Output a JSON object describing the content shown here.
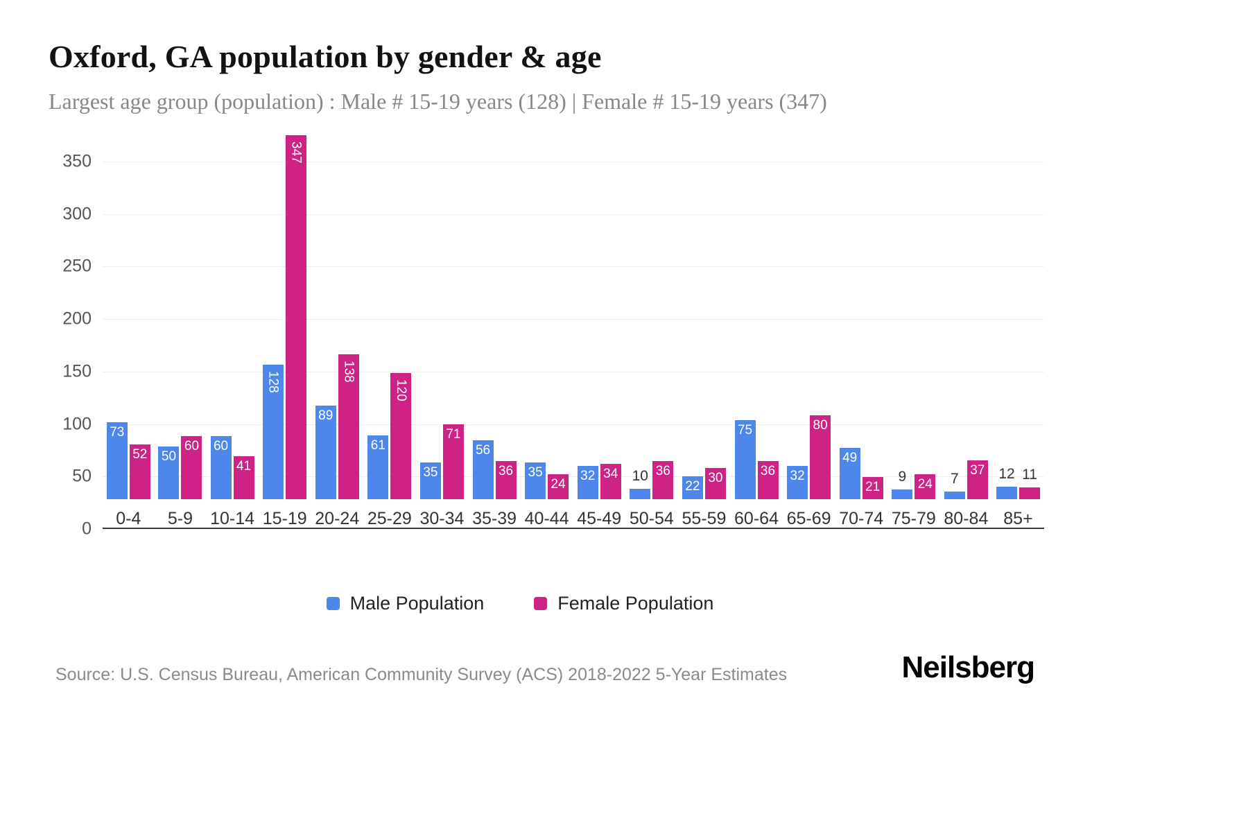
{
  "header": {
    "title": "Oxford, GA population by gender & age",
    "subtitle": "Largest age group (population) : Male # 15-19 years (128) | Female # 15-19 years (347)"
  },
  "chart_data": {
    "type": "bar",
    "title": "Oxford, GA population by gender & age",
    "categories": [
      "0-4",
      "5-9",
      "10-14",
      "15-19",
      "20-24",
      "25-29",
      "30-34",
      "35-39",
      "40-44",
      "45-49",
      "50-54",
      "55-59",
      "60-64",
      "65-69",
      "70-74",
      "75-79",
      "80-84",
      "85+"
    ],
    "series": [
      {
        "name": "Male Population",
        "color": "#4e87ec",
        "values": [
          73,
          50,
          60,
          128,
          89,
          61,
          35,
          56,
          35,
          32,
          10,
          22,
          75,
          32,
          49,
          9,
          7,
          12
        ]
      },
      {
        "name": "Female Population",
        "color": "#ce2286",
        "values": [
          52,
          60,
          41,
          347,
          138,
          120,
          71,
          36,
          24,
          34,
          36,
          30,
          36,
          80,
          21,
          24,
          37,
          11
        ]
      }
    ],
    "xlabel": "",
    "ylabel": "",
    "ylim": [
      0,
      350
    ],
    "yticks": [
      0,
      50,
      100,
      150,
      200,
      250,
      300,
      350
    ],
    "grid": true,
    "legend_position": "bottom",
    "bar_value_labels": true
  },
  "legend": {
    "male": "Male Population",
    "female": "Female Population"
  },
  "colors": {
    "male": "#4e87ec",
    "female": "#ce2286"
  },
  "footer": {
    "source": "Source: U.S. Census Bureau, American Community Survey (ACS) 2018-2022 5-Year Estimates",
    "brand": "Neilsberg"
  }
}
